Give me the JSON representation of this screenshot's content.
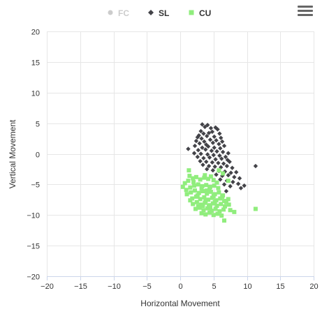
{
  "legend": [
    {
      "name": "FC",
      "marker": "circle",
      "color": "#cccccc",
      "hidden": true
    },
    {
      "name": "SL",
      "marker": "diamond",
      "color": "#434348",
      "hidden": false
    },
    {
      "name": "CU",
      "marker": "square",
      "color": "#90ed7d",
      "hidden": false
    }
  ],
  "menu_icon": "hamburger-menu-icon",
  "chart_data": {
    "type": "scatter",
    "xlabel": "Horizontal Movement",
    "ylabel": "Vertical Movement",
    "xlim": [
      -20,
      20
    ],
    "ylim": [
      -20,
      20
    ],
    "xticks": [
      -20,
      -15,
      -10,
      -5,
      0,
      5,
      10,
      15,
      20
    ],
    "yticks": [
      -20,
      -15,
      -10,
      -5,
      0,
      5,
      10,
      15,
      20
    ],
    "x_tick_labels": [
      "−20",
      "−15",
      "−10",
      "−5",
      "0",
      "5",
      "10",
      "15",
      "20"
    ],
    "y_tick_labels": [
      "−20",
      "−15",
      "−10",
      "−5",
      "0",
      "5",
      "10",
      "15",
      "20"
    ],
    "grid": true,
    "legend_position": "top-center",
    "series": [
      {
        "name": "FC",
        "marker": "circle",
        "color": "#cccccc",
        "hidden": true,
        "points": []
      },
      {
        "name": "SL",
        "marker": "diamond",
        "color": "#434348",
        "points": [
          [
            3.3,
            4.8
          ],
          [
            3.7,
            4.4
          ],
          [
            4.1,
            4.7
          ],
          [
            4.6,
            4.2
          ],
          [
            5.3,
            4.3
          ],
          [
            5.6,
            4.0
          ],
          [
            3.1,
            3.7
          ],
          [
            4.3,
            3.4
          ],
          [
            2.8,
            3.0
          ],
          [
            3.5,
            3.3
          ],
          [
            4.8,
            3.6
          ],
          [
            5.9,
            3.3
          ],
          [
            2.6,
            2.7
          ],
          [
            3.2,
            2.5
          ],
          [
            4.0,
            2.9
          ],
          [
            5.1,
            2.8
          ],
          [
            6.1,
            2.6
          ],
          [
            2.4,
            2.1
          ],
          [
            3.6,
            2.0
          ],
          [
            4.5,
            2.3
          ],
          [
            5.4,
            2.2
          ],
          [
            6.3,
            2.0
          ],
          [
            2.9,
            1.7
          ],
          [
            3.9,
            1.5
          ],
          [
            4.9,
            1.8
          ],
          [
            5.8,
            1.6
          ],
          [
            6.6,
            1.3
          ],
          [
            2.2,
            1.3
          ],
          [
            3.3,
            1.0
          ],
          [
            4.2,
            1.2
          ],
          [
            5.1,
            1.0
          ],
          [
            6.0,
            0.9
          ],
          [
            1.2,
            0.8
          ],
          [
            2.7,
            0.6
          ],
          [
            3.8,
            0.7
          ],
          [
            4.7,
            0.5
          ],
          [
            5.5,
            0.4
          ],
          [
            6.4,
            0.3
          ],
          [
            7.2,
            0.1
          ],
          [
            2.1,
            0.1
          ],
          [
            3.1,
            0.0
          ],
          [
            4.1,
            -0.1
          ],
          [
            5.0,
            -0.2
          ],
          [
            5.9,
            -0.3
          ],
          [
            6.8,
            -0.5
          ],
          [
            2.6,
            -0.5
          ],
          [
            3.5,
            -0.7
          ],
          [
            4.4,
            -0.6
          ],
          [
            5.3,
            -0.9
          ],
          [
            6.2,
            -0.8
          ],
          [
            7.1,
            -1.0
          ],
          [
            3.0,
            -1.2
          ],
          [
            3.9,
            -1.3
          ],
          [
            4.8,
            -1.4
          ],
          [
            5.7,
            -1.5
          ],
          [
            6.5,
            -1.6
          ],
          [
            7.4,
            -1.3
          ],
          [
            3.4,
            -1.8
          ],
          [
            4.3,
            -2.0
          ],
          [
            5.2,
            -2.1
          ],
          [
            6.1,
            -2.2
          ],
          [
            7.0,
            -2.0
          ],
          [
            7.8,
            -2.3
          ],
          [
            4.0,
            -2.5
          ],
          [
            4.9,
            -2.7
          ],
          [
            5.8,
            -2.8
          ],
          [
            6.7,
            -2.9
          ],
          [
            7.6,
            -3.1
          ],
          [
            8.4,
            -3.0
          ],
          [
            11.3,
            -2.0
          ],
          [
            5.4,
            -3.4
          ],
          [
            6.3,
            -3.6
          ],
          [
            7.2,
            -3.5
          ],
          [
            8.1,
            -3.8
          ],
          [
            8.9,
            -4.0
          ],
          [
            6.0,
            -4.2
          ],
          [
            7.0,
            -4.4
          ],
          [
            7.9,
            -4.6
          ],
          [
            8.7,
            -4.9
          ],
          [
            9.6,
            -5.2
          ],
          [
            6.6,
            -5.0
          ],
          [
            7.5,
            -5.3
          ],
          [
            9.1,
            -5.6
          ],
          [
            6.9,
            -6.1
          ]
        ]
      },
      {
        "name": "CU",
        "marker": "square",
        "color": "#90ed7d",
        "points": [
          [
            1.3,
            -2.7
          ],
          [
            1.4,
            -3.6
          ],
          [
            0.4,
            -5.4
          ],
          [
            0.7,
            -4.8
          ],
          [
            1.2,
            -4.4
          ],
          [
            1.9,
            -4.0
          ],
          [
            2.4,
            -3.8
          ],
          [
            3.0,
            -4.2
          ],
          [
            3.6,
            -3.9
          ],
          [
            4.2,
            -4.1
          ],
          [
            5.0,
            -4.3
          ],
          [
            5.8,
            -2.7
          ],
          [
            6.4,
            -3.2
          ],
          [
            0.9,
            -5.9
          ],
          [
            1.5,
            -5.5
          ],
          [
            2.1,
            -5.2
          ],
          [
            2.7,
            -5.0
          ],
          [
            3.3,
            -5.3
          ],
          [
            3.9,
            -5.1
          ],
          [
            4.5,
            -5.4
          ],
          [
            5.1,
            -5.2
          ],
          [
            5.7,
            -5.6
          ],
          [
            1.0,
            -6.6
          ],
          [
            1.6,
            -6.3
          ],
          [
            2.2,
            -6.0
          ],
          [
            2.8,
            -6.4
          ],
          [
            3.4,
            -6.1
          ],
          [
            4.0,
            -6.5
          ],
          [
            4.6,
            -6.2
          ],
          [
            5.2,
            -6.6
          ],
          [
            5.8,
            -6.3
          ],
          [
            6.4,
            -6.8
          ],
          [
            7.2,
            -4.4
          ],
          [
            1.8,
            -7.3
          ],
          [
            2.4,
            -7.0
          ],
          [
            3.0,
            -7.4
          ],
          [
            3.6,
            -7.1
          ],
          [
            4.2,
            -7.5
          ],
          [
            4.8,
            -7.2
          ],
          [
            5.4,
            -7.6
          ],
          [
            6.0,
            -7.3
          ],
          [
            6.6,
            -7.7
          ],
          [
            7.2,
            -7.4
          ],
          [
            1.9,
            -8.2
          ],
          [
            2.5,
            -7.9
          ],
          [
            3.1,
            -8.3
          ],
          [
            3.7,
            -8.0
          ],
          [
            4.3,
            -8.4
          ],
          [
            4.9,
            -8.1
          ],
          [
            5.5,
            -8.5
          ],
          [
            6.1,
            -8.2
          ],
          [
            6.7,
            -8.6
          ],
          [
            7.3,
            -8.3
          ],
          [
            2.3,
            -9.0
          ],
          [
            2.9,
            -8.8
          ],
          [
            3.5,
            -9.2
          ],
          [
            4.1,
            -8.9
          ],
          [
            4.7,
            -9.3
          ],
          [
            5.3,
            -9.0
          ],
          [
            5.9,
            -9.4
          ],
          [
            6.5,
            -9.1
          ],
          [
            7.5,
            -9.2
          ],
          [
            8.1,
            -9.5
          ],
          [
            3.2,
            -9.7
          ],
          [
            3.8,
            -9.9
          ],
          [
            4.4,
            -9.6
          ],
          [
            5.0,
            -10.0
          ],
          [
            5.6,
            -9.8
          ],
          [
            6.2,
            -10.1
          ],
          [
            6.6,
            -10.9
          ],
          [
            11.3,
            -9.0
          ],
          [
            2.0,
            -4.6
          ],
          [
            3.7,
            -3.5
          ],
          [
            4.6,
            -3.7
          ],
          [
            2.6,
            -6.8
          ],
          [
            3.2,
            -5.7
          ],
          [
            4.4,
            -5.8
          ],
          [
            5.0,
            -6.9
          ],
          [
            3.8,
            -7.7
          ],
          [
            4.5,
            -8.7
          ],
          [
            5.2,
            -7.9
          ],
          [
            2.7,
            -8.6
          ],
          [
            3.4,
            -8.5
          ],
          [
            6.3,
            -7.0
          ],
          [
            6.9,
            -7.9
          ],
          [
            1.5,
            -7.6
          ],
          [
            4.0,
            -6.0
          ],
          [
            5.5,
            -4.7
          ]
        ]
      }
    ]
  }
}
